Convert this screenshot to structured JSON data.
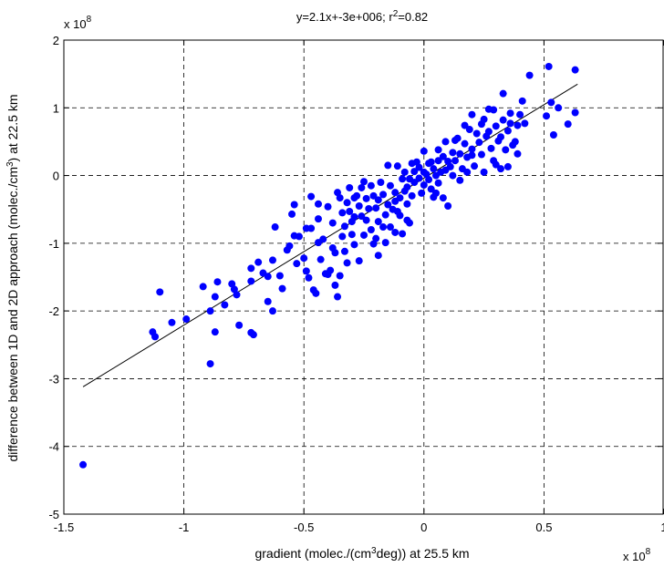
{
  "chart_data": {
    "type": "scatter",
    "title": "y=2.1x+-3e+006; r",
    "title_sup": "2",
    "title_tail": "=0.82",
    "xlabel": {
      "pre": "gradient (molec./(cm",
      "sup": "3",
      "post": "deg)) at 25.5 km"
    },
    "ylabel": {
      "pre": "difference between 1D and 2D approach (molec./cm",
      "sup": "3",
      "post": ") at 22.5 km"
    },
    "x_multiplier": {
      "base": "x 10",
      "exp": "8"
    },
    "y_multiplier": {
      "base": "x 10",
      "exp": "8"
    },
    "xlim": [
      -1.5,
      1
    ],
    "ylim": [
      -5,
      2
    ],
    "x_ticks": [
      -1.5,
      -1,
      -0.5,
      0,
      0.5,
      1
    ],
    "x_tick_labels": [
      "-1.5",
      "-1",
      "-0.5",
      "0",
      "0.5",
      "1"
    ],
    "y_ticks": [
      -5,
      -4,
      -3,
      -2,
      -1,
      0,
      1,
      2
    ],
    "y_tick_labels": [
      "-5",
      "-4",
      "-3",
      "-2",
      "-1",
      "0",
      "1",
      "2"
    ],
    "grid": true,
    "marker_color": "#0000ff",
    "fit_line": {
      "x": [
        -1.42,
        0.64
      ],
      "y": [
        -3.12,
        1.35
      ],
      "color": "#000000"
    },
    "points": [
      [
        -1.42,
        -4.27
      ],
      [
        -1.13,
        -2.31
      ],
      [
        -1.12,
        -2.38
      ],
      [
        -1.1,
        -1.72
      ],
      [
        -1.05,
        -2.17
      ],
      [
        -0.99,
        -2.12
      ],
      [
        -0.92,
        -1.64
      ],
      [
        -0.89,
        -2.0
      ],
      [
        -0.89,
        -2.78
      ],
      [
        -0.87,
        -2.31
      ],
      [
        -0.87,
        -1.79
      ],
      [
        -0.86,
        -1.57
      ],
      [
        -0.83,
        -1.91
      ],
      [
        -0.8,
        -1.6
      ],
      [
        -0.79,
        -1.68
      ],
      [
        -0.78,
        -1.76
      ],
      [
        -0.77,
        -2.21
      ],
      [
        -0.72,
        -2.32
      ],
      [
        -0.71,
        -2.35
      ],
      [
        -0.72,
        -1.56
      ],
      [
        -0.72,
        -1.37
      ],
      [
        -0.69,
        -1.28
      ],
      [
        -0.67,
        -1.44
      ],
      [
        -0.65,
        -1.49
      ],
      [
        -0.65,
        -1.86
      ],
      [
        -0.63,
        -2.0
      ],
      [
        -0.63,
        -1.25
      ],
      [
        -0.6,
        -1.48
      ],
      [
        -0.59,
        -1.67
      ],
      [
        -0.57,
        -1.1
      ],
      [
        -0.56,
        -1.04
      ],
      [
        -0.55,
        -0.57
      ],
      [
        -0.54,
        -0.43
      ],
      [
        -0.54,
        -0.89
      ],
      [
        -0.52,
        -0.9
      ],
      [
        -0.5,
        -1.22
      ],
      [
        -0.49,
        -1.41
      ],
      [
        -0.49,
        -0.78
      ],
      [
        -0.48,
        -1.51
      ],
      [
        -0.47,
        -0.78
      ],
      [
        -0.46,
        -1.69
      ],
      [
        -0.45,
        -1.74
      ],
      [
        -0.44,
        -0.99
      ],
      [
        -0.44,
        -0.64
      ],
      [
        -0.43,
        -1.24
      ],
      [
        -0.42,
        -0.94
      ],
      [
        -0.41,
        -1.45
      ],
      [
        -0.4,
        -1.46
      ],
      [
        -0.39,
        -1.4
      ],
      [
        -0.38,
        -0.7
      ],
      [
        -0.37,
        -1.14
      ],
      [
        -0.37,
        -1.62
      ],
      [
        -0.36,
        -1.79
      ],
      [
        -0.35,
        -1.48
      ],
      [
        -0.35,
        -0.33
      ],
      [
        -0.34,
        -0.55
      ],
      [
        -0.34,
        -0.9
      ],
      [
        -0.33,
        -0.75
      ],
      [
        -0.32,
        -1.29
      ],
      [
        -0.32,
        -0.4
      ],
      [
        -0.31,
        -0.53
      ],
      [
        -0.3,
        -0.68
      ],
      [
        -0.3,
        -0.87
      ],
      [
        -0.29,
        -1.02
      ],
      [
        -0.29,
        -0.33
      ],
      [
        -0.28,
        -0.3
      ],
      [
        -0.27,
        -0.45
      ],
      [
        -0.27,
        -1.26
      ],
      [
        -0.26,
        -0.6
      ],
      [
        -0.25,
        -0.88
      ],
      [
        -0.24,
        -0.34
      ],
      [
        -0.24,
        -0.66
      ],
      [
        -0.23,
        -0.49
      ],
      [
        -0.22,
        -0.8
      ],
      [
        -0.22,
        -0.15
      ],
      [
        -0.21,
        -1.01
      ],
      [
        -0.2,
        -0.48
      ],
      [
        -0.2,
        -0.93
      ],
      [
        -0.19,
        -0.68
      ],
      [
        -0.19,
        -0.36
      ],
      [
        -0.18,
        -0.1
      ],
      [
        -0.17,
        -0.76
      ],
      [
        -0.17,
        -0.28
      ],
      [
        -0.16,
        -0.58
      ],
      [
        -0.16,
        -0.99
      ],
      [
        -0.15,
        -0.43
      ],
      [
        -0.14,
        -0.15
      ],
      [
        -0.14,
        -0.76
      ],
      [
        -0.13,
        -0.5
      ],
      [
        -0.12,
        -0.25
      ],
      [
        -0.12,
        -0.84
      ],
      [
        -0.11,
        0.14
      ],
      [
        -0.1,
        -0.33
      ],
      [
        -0.1,
        -0.59
      ],
      [
        -0.09,
        -0.05
      ],
      [
        -0.08,
        -0.23
      ],
      [
        -0.08,
        0.05
      ],
      [
        -0.07,
        -0.42
      ],
      [
        -0.07,
        -0.66
      ],
      [
        -0.06,
        -0.05
      ],
      [
        -0.05,
        0.18
      ],
      [
        -0.05,
        -0.3
      ],
      [
        -0.04,
        -0.1
      ],
      [
        -0.04,
        0.06
      ],
      [
        -0.03,
        0.2
      ],
      [
        -0.02,
        -0.04
      ],
      [
        -0.02,
        0.12
      ],
      [
        -0.01,
        -0.26
      ],
      [
        0.0,
        0.05
      ],
      [
        0.0,
        -0.14
      ],
      [
        0.01,
        0.02
      ],
      [
        0.02,
        0.18
      ],
      [
        0.02,
        -0.06
      ],
      [
        0.03,
        -0.2
      ],
      [
        0.04,
        0.1
      ],
      [
        0.04,
        -0.32
      ],
      [
        0.05,
        0.0
      ],
      [
        0.06,
        0.22
      ],
      [
        0.06,
        -0.11
      ],
      [
        0.07,
        0.05
      ],
      [
        0.08,
        -0.33
      ],
      [
        0.08,
        0.28
      ],
      [
        0.09,
        0.08
      ],
      [
        0.1,
        -0.45
      ],
      [
        0.11,
        0.13
      ],
      [
        0.12,
        0.34
      ],
      [
        0.12,
        0.0
      ],
      [
        0.13,
        0.22
      ],
      [
        0.14,
        0.55
      ],
      [
        0.15,
        0.32
      ],
      [
        0.16,
        0.1
      ],
      [
        0.17,
        0.47
      ],
      [
        0.18,
        0.27
      ],
      [
        0.19,
        0.68
      ],
      [
        0.2,
        0.39
      ],
      [
        0.2,
        0.9
      ],
      [
        0.21,
        0.14
      ],
      [
        0.22,
        0.62
      ],
      [
        0.23,
        0.49
      ],
      [
        0.24,
        0.31
      ],
      [
        0.25,
        0.83
      ],
      [
        0.25,
        0.05
      ],
      [
        0.26,
        0.58
      ],
      [
        0.27,
        0.98
      ],
      [
        0.28,
        0.4
      ],
      [
        0.29,
        0.22
      ],
      [
        0.3,
        0.73
      ],
      [
        0.3,
        0.16
      ],
      [
        0.31,
        0.51
      ],
      [
        0.32,
        0.1
      ],
      [
        0.33,
        1.21
      ],
      [
        0.33,
        0.82
      ],
      [
        0.34,
        0.38
      ],
      [
        0.35,
        0.66
      ],
      [
        0.35,
        0.13
      ],
      [
        0.36,
        0.92
      ],
      [
        0.37,
        0.45
      ],
      [
        0.38,
        0.5
      ],
      [
        0.39,
        0.74
      ],
      [
        0.4,
        0.9
      ],
      [
        0.41,
        1.1
      ],
      [
        0.42,
        0.77
      ],
      [
        0.44,
        1.48
      ],
      [
        0.51,
        0.88
      ],
      [
        0.52,
        1.61
      ],
      [
        0.53,
        1.08
      ],
      [
        0.54,
        0.6
      ],
      [
        0.56,
        1.0
      ],
      [
        0.6,
        0.76
      ],
      [
        0.63,
        1.56
      ],
      [
        0.63,
        0.93
      ],
      [
        -0.53,
        -1.3
      ],
      [
        -0.38,
        -1.07
      ],
      [
        -0.26,
        -0.18
      ],
      [
        -0.09,
        -0.86
      ],
      [
        0.06,
        0.38
      ],
      [
        0.24,
        0.76
      ],
      [
        0.39,
        0.32
      ],
      [
        -0.47,
        -0.31
      ],
      [
        -0.31,
        -0.18
      ],
      [
        -0.15,
        0.15
      ],
      [
        0.0,
        0.36
      ],
      [
        0.15,
        -0.07
      ],
      [
        0.27,
        0.65
      ],
      [
        -0.62,
        -0.76
      ],
      [
        -0.29,
        -0.61
      ],
      [
        -0.19,
        -1.18
      ],
      [
        -0.06,
        -0.7
      ],
      [
        0.09,
        0.5
      ],
      [
        0.18,
        0.05
      ],
      [
        -0.4,
        -0.46
      ],
      [
        -0.25,
        -0.09
      ],
      [
        -0.11,
        -0.53
      ],
      [
        0.03,
        0.2
      ],
      [
        0.13,
        0.52
      ],
      [
        0.29,
        0.97
      ],
      [
        -0.33,
        -1.12
      ],
      [
        -0.21,
        -0.3
      ],
      [
        -0.07,
        -0.17
      ],
      [
        0.1,
        0.21
      ],
      [
        0.2,
        0.3
      ],
      [
        0.36,
        0.77
      ],
      [
        -0.44,
        -0.42
      ],
      [
        -0.36,
        -0.25
      ],
      [
        -0.12,
        -0.38
      ],
      [
        0.05,
        -0.26
      ],
      [
        0.17,
        0.74
      ],
      [
        0.32,
        0.57
      ]
    ]
  }
}
